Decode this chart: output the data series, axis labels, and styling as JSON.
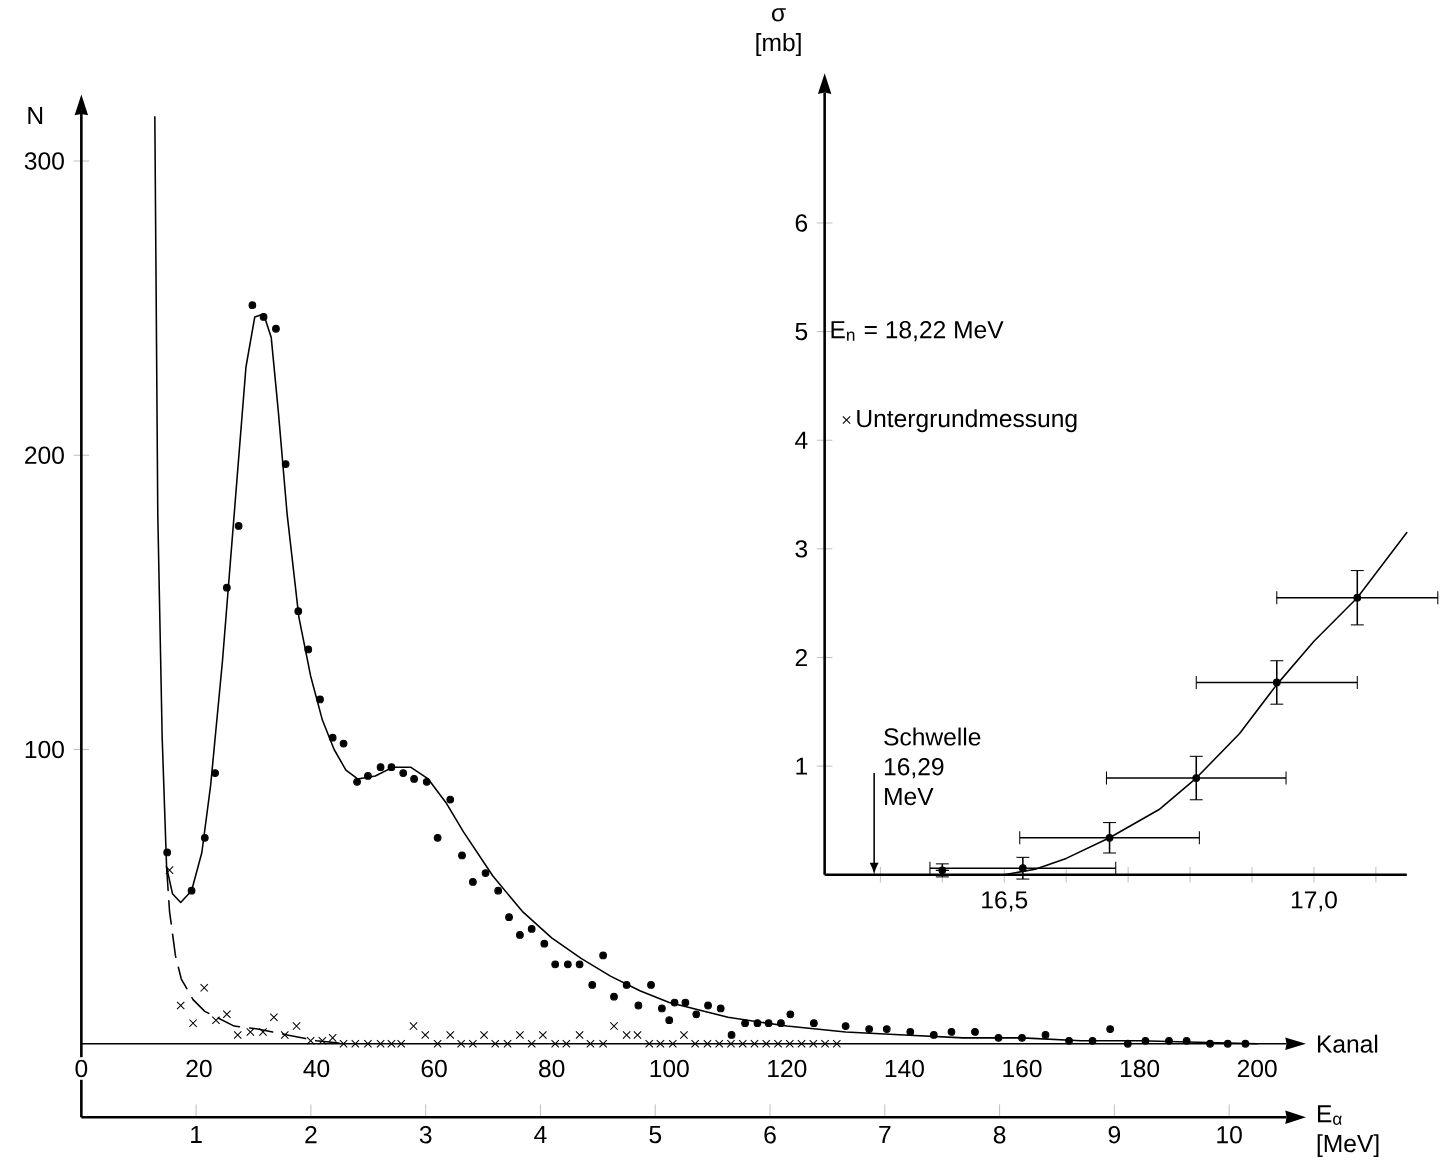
{
  "chart_data": [
    {
      "type": "scatter",
      "xlabel": "Kanal",
      "ylabel": "N",
      "x2label": "E$_{α}$ [MeV]",
      "xlim": [
        0,
        205
      ],
      "xticks": [
        0,
        20,
        40,
        60,
        80,
        100,
        120,
        140,
        160,
        180,
        200
      ],
      "x2lim": [
        0,
        10.5
      ],
      "x2ticks": [
        1,
        2,
        3,
        4,
        5,
        6,
        7,
        8,
        9,
        10
      ],
      "ylim": [
        -25,
        316
      ],
      "yticks": [
        100,
        200,
        300
      ],
      "legend": "top right",
      "series": [
        {
          "marker": "circle",
          "color": "#000000",
          "x": [
            14.6,
            18.75,
            21,
            22.75,
            24.75,
            26.75,
            29.1,
            31,
            33.1,
            34.75,
            36.9,
            38.6,
            40.6,
            42.75,
            44.6,
            46.9,
            48.75,
            50.9,
            52.75,
            54.75,
            56.6,
            58.75,
            60.6,
            62.75,
            64.75,
            66.6,
            68.75,
            70.9,
            72.75,
            74.6,
            76.6,
            78.75,
            80.6,
            82.75,
            84.75,
            86.9,
            88.75,
            90.6,
            92.75,
            94.75,
            96.9,
            98.75,
            100,
            100.9,
            102.75,
            104.6,
            106.6,
            108.75,
            110.6,
            112.9,
            115,
            116.9,
            119,
            120.6,
            124.6,
            130,
            134,
            137,
            141,
            145,
            148,
            152,
            156,
            160,
            164,
            168,
            172,
            175,
            178,
            181,
            185,
            188,
            192,
            195,
            198
          ],
          "values": [
            65,
            52,
            70,
            92,
            155,
            176,
            251,
            247,
            243,
            197,
            147,
            134,
            117,
            104,
            102,
            89,
            91,
            94,
            94,
            92,
            90,
            89,
            70,
            83,
            64,
            55,
            58,
            52,
            43,
            37,
            39,
            34,
            27,
            27,
            27,
            20,
            30,
            16,
            20,
            13,
            20,
            12,
            8,
            14,
            14,
            10,
            13,
            12,
            3,
            7,
            7,
            7,
            7,
            10,
            7,
            6,
            5,
            5,
            4,
            3,
            4,
            4,
            2,
            2,
            3,
            1,
            1,
            5,
            0,
            1,
            1,
            1,
            0,
            0,
            0
          ]
        },
        {
          "marker": "cross",
          "color": "#000000",
          "name": "Untergrundmessung",
          "x": [
            15,
            16.9,
            19,
            20.9,
            22.9,
            24.75,
            26.6,
            28.75,
            30.9,
            32.75,
            34.6,
            36.6,
            39,
            41,
            42.75,
            44.6,
            46.6,
            48.75,
            50.9,
            52.75,
            54.4,
            56.5,
            58.5,
            60.6,
            62.75,
            64.6,
            66.6,
            68.5,
            70.4,
            72.5,
            74.6,
            76.6,
            78.5,
            80.6,
            82.5,
            84.75,
            86.6,
            88.75,
            90.6,
            92.75,
            94.6,
            96.6,
            98.5,
            100.6,
            102.5,
            104.4,
            106.5,
            108.5,
            110.5,
            112.5,
            114.5,
            116.5,
            118.5,
            120.5,
            122.5,
            124.5,
            126.5,
            128.5
          ],
          "values": [
            59,
            13,
            7,
            19,
            8,
            10,
            3,
            4,
            4,
            9,
            3,
            6,
            1,
            1,
            2,
            0,
            0,
            0,
            0,
            0,
            0,
            6,
            3,
            0,
            3,
            0,
            0,
            3,
            0,
            0,
            3,
            0,
            3,
            0,
            0,
            3,
            0,
            0,
            6,
            3,
            3,
            0,
            0,
            0,
            3,
            0,
            0,
            0,
            0,
            0,
            0,
            0,
            0,
            0,
            0,
            0,
            0,
            0
          ]
        },
        {
          "type": "line",
          "color": "#000000",
          "line_style": "solid",
          "x": [
            12.5,
            13,
            13.75,
            14.5,
            15.5,
            16.9,
            18.75,
            20.5,
            22,
            24,
            26,
            28,
            29.5,
            31,
            32.3,
            33.5,
            35,
            37,
            39,
            41,
            43,
            45,
            47,
            50,
            53,
            56,
            59,
            62,
            65,
            70,
            75,
            80,
            85,
            90,
            95,
            100,
            110,
            120,
            130,
            140,
            150,
            160,
            170,
            180,
            200
          ],
          "values": [
            315,
            180,
            104,
            60,
            51,
            48,
            52,
            65,
            88,
            130,
            180,
            230,
            247,
            248,
            240,
            215,
            180,
            145,
            125,
            110,
            100,
            93,
            90,
            91,
            94,
            94,
            90,
            82,
            72,
            57,
            45,
            36,
            29,
            23,
            18,
            14,
            9,
            6,
            4,
            3,
            2,
            2,
            1,
            1,
            0
          ]
        },
        {
          "type": "line",
          "color": "#000000",
          "line_style": "dashed",
          "x": [
            14.5,
            15,
            16,
            17,
            19,
            21,
            23,
            26,
            30,
            35,
            40,
            45
          ],
          "values": [
            60,
            45,
            30,
            22,
            15,
            11,
            9,
            6,
            5,
            3,
            1,
            0
          ]
        }
      ]
    },
    {
      "type": "scatter",
      "ylabel": "σ [mb]",
      "xlim": [
        16.21,
        17.15
      ],
      "xticks": [
        {
          "value": 16.3,
          "label": null
        },
        {
          "value": 16.4,
          "label": null
        },
        {
          "value": 16.5,
          "label": "16,5"
        },
        {
          "value": 16.6,
          "label": null
        },
        {
          "value": 16.7,
          "label": null
        },
        {
          "value": 16.8,
          "label": null
        },
        {
          "value": 16.9,
          "label": null
        },
        {
          "value": 17.0,
          "label": "17,0"
        },
        {
          "value": 17.1,
          "label": null
        }
      ],
      "ylim": [
        0,
        7.2
      ],
      "yticks": [
        1,
        2,
        3,
        4,
        5,
        6
      ],
      "annotations": [
        "E$_{n}$ = 18,22 MeV",
        "Schwelle 16,29 MeV"
      ],
      "series": [
        {
          "marker": "circle",
          "color": "#000000",
          "x": [
            16.4,
            16.53,
            16.67,
            16.81,
            16.94,
            17.07
          ],
          "values": [
            0.04,
            0.06,
            0.34,
            0.89,
            1.77,
            2.55
          ],
          "errors": [
            0.06,
            0.1,
            0.14,
            0.2,
            0.2,
            0.25
          ],
          "xerrors": [
            null,
            0.15,
            0.145,
            0.145,
            0.13,
            0.13
          ]
        },
        {
          "type": "line",
          "color": "#000000",
          "line_style": "solid",
          "x": [
            16.4,
            16.5,
            16.55,
            16.6,
            16.67,
            16.75,
            16.81,
            16.88,
            16.94,
            17.0,
            17.07,
            17.15
          ],
          "values": [
            0,
            0,
            0.05,
            0.15,
            0.34,
            0.6,
            0.89,
            1.3,
            1.75,
            2.15,
            2.55,
            3.15
          ]
        }
      ]
    }
  ]
}
